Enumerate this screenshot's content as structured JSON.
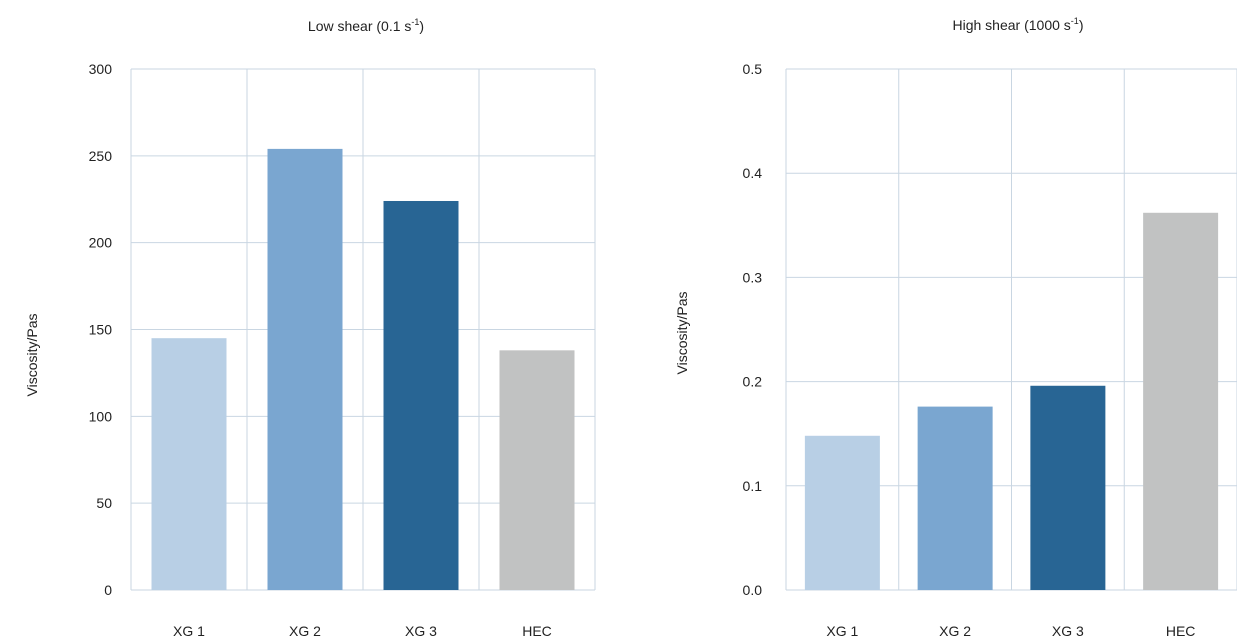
{
  "chart_data": [
    {
      "type": "bar",
      "title_main": "Low shear (0.1 s",
      "title_sup": "-1",
      "title_end": ")",
      "ylabel": "Viscosity/Pas",
      "categories": [
        "XG 1",
        "XG 2",
        "XG 3",
        "HEC"
      ],
      "values": [
        145,
        254,
        224,
        138
      ],
      "ylim": [
        0,
        300
      ],
      "yticks": [
        "0",
        "50",
        "100",
        "150",
        "200",
        "250",
        "300"
      ],
      "ytick_values": [
        0,
        50,
        100,
        150,
        200,
        250,
        300
      ],
      "colors": [
        "#b8cfe5",
        "#7aa6d0",
        "#286594",
        "#c1c2c2"
      ],
      "grid": true
    },
    {
      "type": "bar",
      "title_main": "High shear (1000 s",
      "title_sup": "-1",
      "title_end": ")",
      "ylabel": "Viscosity/Pas",
      "categories": [
        "XG 1",
        "XG 2",
        "XG 3",
        "HEC"
      ],
      "values": [
        0.148,
        0.176,
        0.196,
        0.362
      ],
      "ylim": [
        0,
        0.5
      ],
      "yticks": [
        "0.0",
        "0.1",
        "0.2",
        "0.3",
        "0.4",
        "0.5"
      ],
      "ytick_values": [
        0,
        0.1,
        0.2,
        0.3,
        0.4,
        0.5
      ],
      "colors": [
        "#b8cfe5",
        "#7aa6d0",
        "#286594",
        "#c1c2c2"
      ],
      "grid": true
    }
  ]
}
